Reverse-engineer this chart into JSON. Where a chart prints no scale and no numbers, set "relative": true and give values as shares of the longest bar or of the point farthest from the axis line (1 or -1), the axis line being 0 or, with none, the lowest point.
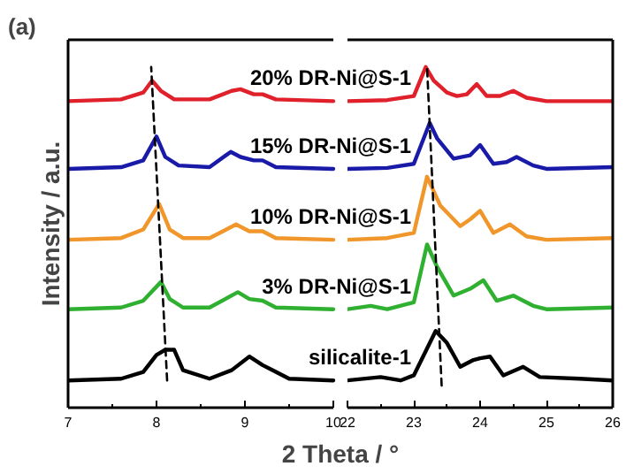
{
  "chart_data": [
    {
      "type": "line",
      "title": "(a)",
      "xlabel": "2 Theta / °",
      "ylabel": "Intensity / a.u.",
      "relative": true,
      "xlim": [
        7,
        10
      ],
      "xticks": [
        7,
        {
          "value": 7.5,
          "label": null
        },
        8,
        {
          "value": 8.5,
          "label": null
        },
        9,
        {
          "value": 9.5,
          "label": null
        },
        10
      ],
      "marker": "none",
      "line_style": "solid",
      "series": [
        {
          "name": "20% DR-Ni@S-1",
          "color": "#e0202a",
          "x": [
            7,
            7.6,
            7.85,
            7.95,
            8.05,
            8.2,
            8.6,
            8.85,
            8.95,
            9.1,
            9.2,
            9.35,
            10
          ],
          "values": [
            0.9,
            0.905,
            0.925,
            0.96,
            0.93,
            0.905,
            0.905,
            0.93,
            0.935,
            0.92,
            0.92,
            0.905,
            0.9
          ]
        },
        {
          "name": "15% DR-Ni@S-1",
          "color": "#1a1aa8",
          "x": [
            7,
            7.6,
            7.85,
            8.0,
            8.1,
            8.25,
            8.6,
            8.84,
            8.95,
            9.1,
            9.2,
            9.35,
            10
          ],
          "values": [
            0.701,
            0.706,
            0.726,
            0.796,
            0.736,
            0.711,
            0.706,
            0.751,
            0.736,
            0.726,
            0.726,
            0.706,
            0.701
          ]
        },
        {
          "name": "10% DR-Ni@S-1",
          "color": "#f0962a",
          "x": [
            7,
            7.6,
            7.85,
            8.03,
            8.15,
            8.3,
            8.6,
            8.9,
            9.05,
            9.2,
            9.35,
            10
          ],
          "values": [
            0.493,
            0.498,
            0.523,
            0.598,
            0.523,
            0.498,
            0.498,
            0.538,
            0.518,
            0.518,
            0.498,
            0.493
          ]
        },
        {
          "name": "3% DR-Ni@S-1",
          "color": "#30b030",
          "x": [
            7,
            7.6,
            7.85,
            8.05,
            8.15,
            8.3,
            8.6,
            8.92,
            9.05,
            9.2,
            9.35,
            10
          ],
          "values": [
            0.289,
            0.294,
            0.314,
            0.369,
            0.319,
            0.294,
            0.294,
            0.339,
            0.319,
            0.314,
            0.294,
            0.289
          ]
        },
        {
          "name": "silicalite-1",
          "color": "#000000",
          "x": [
            7,
            7.6,
            7.85,
            8.0,
            8.1,
            8.2,
            8.3,
            8.6,
            8.85,
            9.05,
            9.2,
            9.35,
            9.5,
            10
          ],
          "values": [
            0.08,
            0.085,
            0.105,
            0.155,
            0.17,
            0.17,
            0.11,
            0.085,
            0.11,
            0.15,
            0.125,
            0.105,
            0.085,
            0.08
          ]
        },
        {
          "color": "#000000",
          "line_style": "dashed",
          "x": [
            8.12,
            7.94
          ],
          "values": [
            0.08,
            1.0
          ]
        }
      ]
    },
    {
      "type": "line",
      "relative": true,
      "xlim": [
        22,
        26
      ],
      "xticks": [
        22,
        {
          "value": 22.5,
          "label": null
        },
        23,
        {
          "value": 23.5,
          "label": null
        },
        24,
        {
          "value": 24.5,
          "label": null
        },
        25,
        {
          "value": 25.5,
          "label": null
        },
        26
      ],
      "marker": "none",
      "line_style": "solid",
      "series": [
        {
          "color": "#e0202a",
          "x": [
            22,
            22.6,
            23.0,
            23.18,
            23.3,
            23.5,
            23.65,
            23.8,
            23.95,
            24.1,
            24.3,
            24.5,
            24.7,
            25,
            26
          ],
          "values": [
            0.9,
            0.903,
            0.915,
            1.0,
            0.96,
            0.925,
            0.915,
            0.92,
            0.95,
            0.915,
            0.915,
            0.93,
            0.91,
            0.9,
            0.9
          ]
        },
        {
          "color": "#1a1aa8",
          "x": [
            22,
            22.6,
            23.0,
            23.24,
            23.35,
            23.6,
            23.85,
            24.0,
            24.2,
            24.4,
            24.55,
            24.8,
            25,
            26
          ],
          "values": [
            0.701,
            0.704,
            0.716,
            0.836,
            0.791,
            0.731,
            0.741,
            0.771,
            0.716,
            0.721,
            0.736,
            0.711,
            0.701,
            0.706
          ]
        },
        {
          "color": "#f0962a",
          "x": [
            22,
            22.6,
            23.0,
            23.2,
            23.4,
            23.7,
            23.85,
            24.0,
            24.2,
            24.45,
            24.7,
            25,
            26
          ],
          "values": [
            0.493,
            0.498,
            0.513,
            0.678,
            0.593,
            0.533,
            0.553,
            0.578,
            0.513,
            0.538,
            0.503,
            0.493,
            0.498
          ]
        },
        {
          "color": "#30b030",
          "x": [
            22,
            22.35,
            22.6,
            23.0,
            23.2,
            23.35,
            23.6,
            23.85,
            24.05,
            24.25,
            24.5,
            24.8,
            25,
            26
          ],
          "values": [
            0.289,
            0.299,
            0.289,
            0.309,
            0.479,
            0.414,
            0.329,
            0.349,
            0.374,
            0.314,
            0.329,
            0.299,
            0.289,
            0.294
          ]
        },
        {
          "color": "#000000",
          "x": [
            22,
            22.5,
            22.8,
            23.0,
            23.33,
            23.5,
            23.7,
            23.9,
            24.0,
            24.15,
            24.35,
            24.65,
            24.9,
            25.5,
            26
          ],
          "values": [
            0.08,
            0.09,
            0.08,
            0.095,
            0.225,
            0.19,
            0.12,
            0.14,
            0.145,
            0.15,
            0.095,
            0.12,
            0.09,
            0.085,
            0.08
          ]
        },
        {
          "color": "#000000",
          "line_style": "dashed",
          "x": [
            23.42,
            23.2
          ],
          "values": [
            0.065,
            1.0
          ]
        }
      ]
    }
  ]
}
